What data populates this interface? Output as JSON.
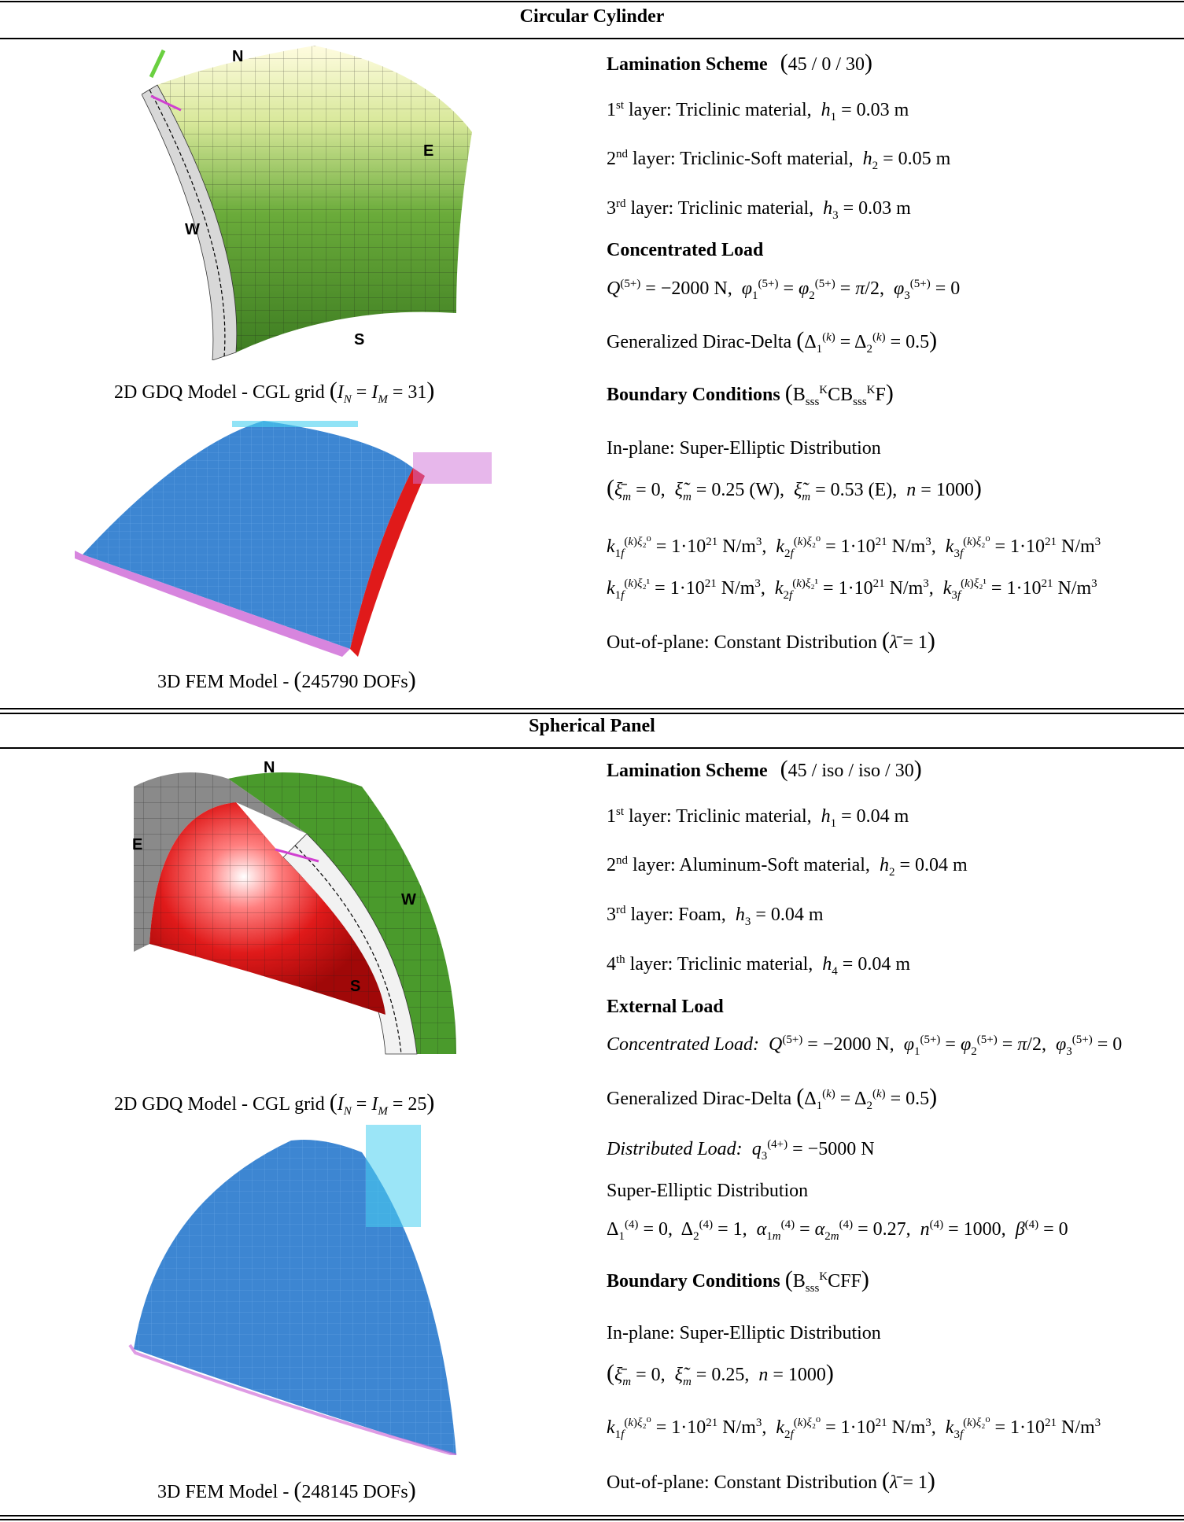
{
  "sections": [
    {
      "title": "Circular Cylinder",
      "figure_top": {
        "compass": {
          "n": "N",
          "e": "E",
          "w": "W",
          "s": "S"
        },
        "caption_prefix": "2D GDQ Model - CGL grid",
        "caption_math": "I_N = I_M = 31"
      },
      "figure_bottom": {
        "caption_prefix": "3D FEM Model -",
        "caption_math": "245790 DOFs"
      },
      "lamination_label": "Lamination Scheme",
      "lamination_value": "45 / 0 / 30",
      "layers": [
        {
          "ord": "1",
          "sup": "st",
          "text": "layer: Triclinic material,",
          "var": "h",
          "idx": "1",
          "val": "= 0.03 m"
        },
        {
          "ord": "2",
          "sup": "nd",
          "text": "layer: Triclinic-Soft material,",
          "var": "h",
          "idx": "2",
          "val": "= 0.05 m"
        },
        {
          "ord": "3",
          "sup": "rd",
          "text": "layer: Triclinic material,",
          "var": "h",
          "idx": "3",
          "val": "= 0.03 m"
        }
      ],
      "load_label": "Concentrated Load",
      "load_eq": "Q(5+) = −2000 N,  φ1(5+) = φ2(5+) = π/2,  φ3(5+) = 0",
      "dirac_label": "Generalized Dirac-Delta",
      "dirac_eq": "Δ1(k) = Δ2(k) = 0.5",
      "bc_label": "Boundary Conditions",
      "bc_value": "B sss K C B sss K F",
      "inplane_label": "In-plane: Super-Elliptic Distribution",
      "inplane_eq": "ξ̄m = 0,  ξ̃m = 0.25 (W),  ξ̃m = 0.53 (E),  n = 1000",
      "k_rows": [
        "k1f(k)ξ2⁰ = 1·10²¹ N/m³,  k2f(k)ξ2⁰ = 1·10²¹ N/m³,  k3f(k)ξ2⁰ = 1·10²¹ N/m³",
        "k1f(k)ξ2¹ = 1·10²¹ N/m³,  k2f(k)ξ2¹ = 1·10²¹ N/m³,  k3f(k)ξ2¹ = 1·10²¹ N/m³"
      ],
      "outplane_label": "Out-of-plane: Constant Distribution",
      "outplane_eq": "λ̄ = 1"
    },
    {
      "title": "Spherical Panel",
      "figure_top": {
        "compass": {
          "n": "N",
          "e": "E",
          "w": "W",
          "s": "S"
        },
        "caption_prefix": "2D GDQ Model - CGL grid",
        "caption_math": "I_N = I_M = 25"
      },
      "figure_bottom": {
        "caption_prefix": "3D FEM Model -",
        "caption_math": "248145 DOFs"
      },
      "lamination_label": "Lamination Scheme",
      "lamination_value": "45 / iso / iso / 30",
      "layers": [
        {
          "ord": "1",
          "sup": "st",
          "text": "layer: Triclinic material,",
          "var": "h",
          "idx": "1",
          "val": "= 0.04 m"
        },
        {
          "ord": "2",
          "sup": "nd",
          "text": "layer: Aluminum-Soft material,",
          "var": "h",
          "idx": "2",
          "val": "= 0.04 m"
        },
        {
          "ord": "3",
          "sup": "rd",
          "text": "layer: Foam,",
          "var": "h",
          "idx": "3",
          "val": "= 0.04 m"
        },
        {
          "ord": "4",
          "sup": "th",
          "text": "layer: Triclinic material,",
          "var": "h",
          "idx": "4",
          "val": "= 0.04 m"
        }
      ],
      "load_label": "External Load",
      "conc_label": "Concentrated Load:",
      "load_eq": "Q(5+) = −2000 N,  φ1(5+) = φ2(5+) = π/2,  φ3(5+) = 0",
      "dirac_label": "Generalized Dirac-Delta",
      "dirac_eq": "Δ1(k) = Δ2(k) = 0.5",
      "dist_label": "Distributed Load:",
      "dist_eq": "q3(4+) = −5000 N",
      "super_label": "Super-Elliptic Distribution",
      "super_eq": "Δ1(4) = 0,  Δ2(4) = 1,  α1m(4) = α2m(4) = 0.27,  n(4) = 1000,  β(4) = 0",
      "bc_label": "Boundary Conditions",
      "bc_value": "B sss K CFF",
      "inplane_label": "In-plane:  Super-Elliptic Distribution",
      "inplane_eq": "ξ̄m = 0,  ξ̃m = 0.25,  n = 1000",
      "k_rows": [
        "k1f(k)ξ2⁰ = 1·10²¹ N/m³,  k2f(k)ξ2⁰ = 1·10²¹ N/m³,  k3f(k)ξ2⁰ = 1·10²¹ N/m³"
      ],
      "outplane_label": "Out-of-plane: Constant Distribution",
      "outplane_eq": "λ̄ = 1"
    }
  ],
  "colors": {
    "green": "#4a9a2c",
    "blue": "#3d86d2",
    "red": "#e01a1a",
    "magenta": "#c040c0",
    "grid": "#1a1a1a"
  }
}
